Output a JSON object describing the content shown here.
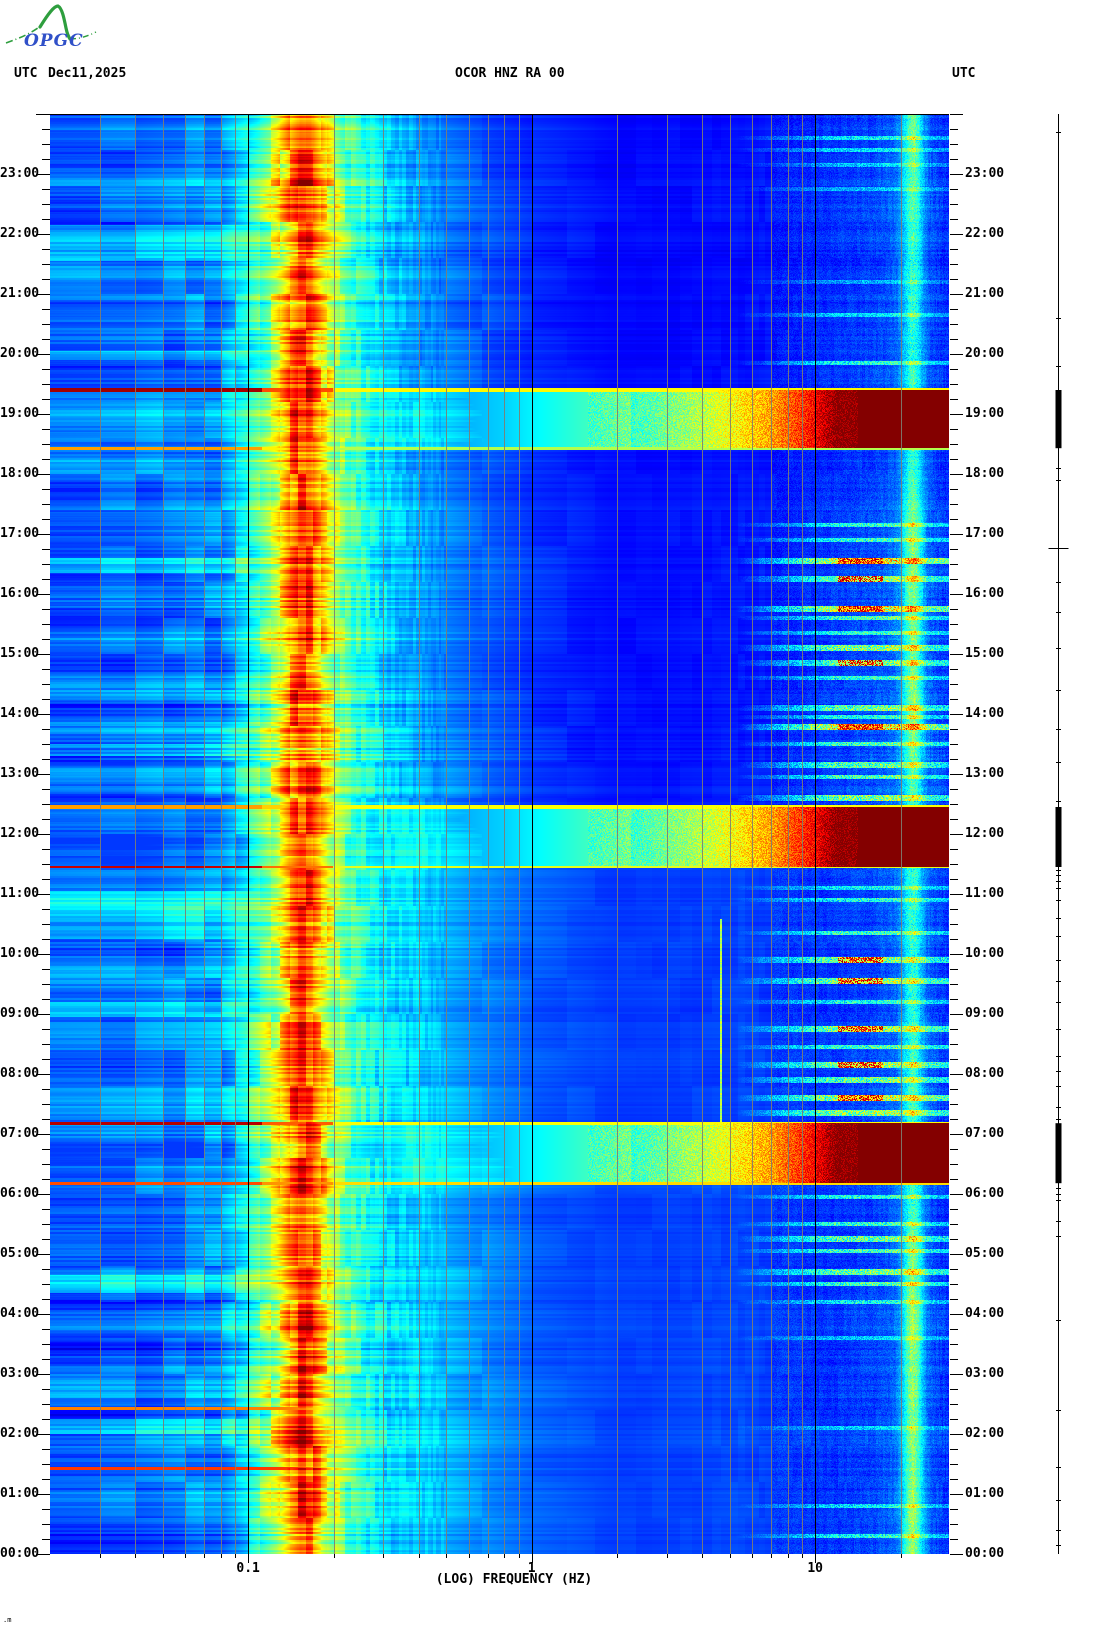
{
  "header": {
    "utc_label_left": "UTC",
    "date": "Dec11,2025",
    "station_title": "OCOR HNZ RA 00",
    "utc_label_right": "UTC"
  },
  "logo": {
    "text": "OPGC",
    "curve_color": "#2e9e3e",
    "text_color": "#3050c8"
  },
  "corner_mark": ".m",
  "x_axis": {
    "title": "(LOG) FREQUENCY (HZ)",
    "tick_labels": [
      {
        "label": "0.1",
        "freq": 0.1
      },
      {
        "label": "1",
        "freq": 1
      },
      {
        "label": "10",
        "freq": 10
      }
    ]
  },
  "y_axis": {
    "labels": [
      {
        "t": 23,
        "label": "23:00"
      },
      {
        "t": 22,
        "label": "22:00"
      },
      {
        "t": 21,
        "label": "21:00"
      },
      {
        "t": 20,
        "label": "20:00"
      },
      {
        "t": 19,
        "label": "19:00"
      },
      {
        "t": 18,
        "label": "18:00"
      },
      {
        "t": 17,
        "label": "17:00"
      },
      {
        "t": 16,
        "label": "16:00"
      },
      {
        "t": 15,
        "label": "15:00"
      },
      {
        "t": 14,
        "label": "14:00"
      },
      {
        "t": 13,
        "label": "13:00"
      },
      {
        "t": 12,
        "label": "12:00"
      },
      {
        "t": 11,
        "label": "11:00"
      },
      {
        "t": 10,
        "label": "10:00"
      },
      {
        "t": 9,
        "label": "09:00"
      },
      {
        "t": 8,
        "label": "08:00"
      },
      {
        "t": 7,
        "label": "07:00"
      },
      {
        "t": 6,
        "label": "06:00"
      },
      {
        "t": 5,
        "label": "05:00"
      },
      {
        "t": 4,
        "label": "04:00"
      },
      {
        "t": 3,
        "label": "03:00"
      },
      {
        "t": 2,
        "label": "02:00"
      },
      {
        "t": 1,
        "label": "01:00"
      },
      {
        "t": 0,
        "label": "00:00"
      }
    ]
  },
  "chart_data": {
    "type": "heatmap",
    "subtype": "seismic-spectrogram",
    "title": "OCOR HNZ RA 00",
    "date_utc": "Dec11,2025",
    "x_range_hz": [
      0.02,
      29.65
    ],
    "x_scale": "log10",
    "y_range_hours": [
      0,
      24
    ],
    "y_direction": "up",
    "colormap": "jet",
    "colormap_anchors": [
      [
        0.0,
        [
          0,
          0,
          135
        ]
      ],
      [
        0.125,
        [
          0,
          0,
          255
        ]
      ],
      [
        0.375,
        [
          0,
          255,
          255
        ]
      ],
      [
        0.625,
        [
          255,
          255,
          0
        ]
      ],
      [
        0.875,
        [
          255,
          0,
          0
        ]
      ],
      [
        1.0,
        [
          132,
          0,
          0
        ]
      ]
    ],
    "base_profile": [
      [
        -1.7,
        0.22
      ],
      [
        -1.4,
        0.23
      ],
      [
        -1.1,
        0.27
      ],
      [
        -1.02,
        0.36
      ],
      [
        -0.97,
        0.44
      ],
      [
        -0.9,
        0.58
      ],
      [
        -0.855,
        0.74
      ],
      [
        -0.815,
        0.84
      ],
      [
        -0.78,
        0.82
      ],
      [
        -0.745,
        0.7
      ],
      [
        -0.7,
        0.56
      ],
      [
        -0.65,
        0.47
      ],
      [
        -0.58,
        0.4
      ],
      [
        -0.5,
        0.33
      ],
      [
        -0.38,
        0.28
      ],
      [
        -0.2,
        0.22
      ],
      [
        0.0,
        0.17
      ],
      [
        0.3,
        0.135
      ],
      [
        0.6,
        0.14
      ],
      [
        0.9,
        0.15
      ],
      [
        1.1,
        0.16
      ],
      [
        1.2,
        0.17
      ],
      [
        1.28,
        0.2
      ],
      [
        1.345,
        0.27
      ],
      [
        1.4,
        0.19
      ],
      [
        1.47,
        0.15
      ]
    ],
    "noise_amp_profile": [
      [
        -1.7,
        0.06
      ],
      [
        -1.3,
        0.07
      ],
      [
        -1.05,
        0.09
      ],
      [
        -0.95,
        0.12
      ],
      [
        -0.88,
        0.15
      ],
      [
        -0.82,
        0.16
      ],
      [
        -0.76,
        0.15
      ],
      [
        -0.7,
        0.13
      ],
      [
        -0.62,
        0.1
      ],
      [
        -0.5,
        0.08
      ],
      [
        -0.35,
        0.05
      ],
      [
        -0.1,
        0.03
      ],
      [
        0.3,
        0.015
      ],
      [
        0.8,
        0.02
      ],
      [
        1.2,
        0.03
      ],
      [
        1.47,
        0.035
      ]
    ],
    "mid_env": [
      [
        0,
        0.05
      ],
      [
        5.9,
        0.05
      ],
      [
        6.18,
        0.06
      ],
      [
        7.18,
        0.045
      ],
      [
        11.4,
        0.045
      ],
      [
        12.5,
        0.008
      ],
      [
        13.5,
        0.0
      ],
      [
        18.4,
        0.0
      ],
      [
        19.45,
        -0.008
      ],
      [
        24,
        -0.008
      ]
    ],
    "hf_fuzz_env": [
      [
        0,
        0.55
      ],
      [
        2,
        0.5
      ],
      [
        4,
        0.6
      ],
      [
        5.5,
        0.55
      ],
      [
        6.3,
        0.45
      ],
      [
        7.3,
        0.75
      ],
      [
        8.5,
        0.65
      ],
      [
        10,
        0.6
      ],
      [
        11.3,
        0.5
      ],
      [
        12.6,
        0.75
      ],
      [
        13.4,
        0.8
      ],
      [
        14,
        0.8
      ],
      [
        15,
        0.78
      ],
      [
        16,
        0.85
      ],
      [
        17,
        0.75
      ],
      [
        17.8,
        0.55
      ],
      [
        18.4,
        0.4
      ],
      [
        19.5,
        0.5
      ],
      [
        20.5,
        0.42
      ],
      [
        21.5,
        0.45
      ],
      [
        22.5,
        0.5
      ],
      [
        23.5,
        0.5
      ],
      [
        24,
        0.5
      ]
    ],
    "stripe22": {
      "f_log": 1.345,
      "sigma": 0.035,
      "envelope": [
        [
          0,
          0.95
        ],
        [
          1,
          0.9
        ],
        [
          2,
          0.85
        ],
        [
          3,
          0.9
        ],
        [
          4,
          0.95
        ],
        [
          5,
          0.8
        ],
        [
          6,
          0.55
        ],
        [
          6.5,
          0.5
        ],
        [
          7.5,
          0.6
        ],
        [
          8.5,
          0.55
        ],
        [
          10,
          0.5
        ],
        [
          11,
          0.55
        ],
        [
          12,
          0.5
        ],
        [
          13,
          0.6
        ],
        [
          14,
          0.9
        ],
        [
          15,
          0.75
        ],
        [
          16,
          0.8
        ],
        [
          17,
          0.85
        ],
        [
          18,
          0.6
        ],
        [
          19,
          0.5
        ],
        [
          19.6,
          0.6
        ],
        [
          20,
          0.5
        ],
        [
          21,
          0.55
        ],
        [
          22,
          0.6
        ],
        [
          23,
          0.7
        ],
        [
          24,
          0.8
        ]
      ]
    },
    "events": [
      {
        "name": "tremor-1826-1924",
        "t_start": 18.43,
        "t_end": 19.4,
        "start_stripe": {
          "lf": 0.72,
          "across": 0.55
        },
        "end_stripe": {
          "lf": 0.97,
          "across": 0.63
        },
        "mid_boost": 0.07
      },
      {
        "name": "tremor-1127-1227",
        "t_start": 11.45,
        "t_end": 12.45,
        "start_stripe": {
          "lf": 0.93,
          "across": 0.6
        },
        "end_stripe": {
          "lf": 0.72,
          "across": 0.62
        },
        "mid_boost": 0.07
      },
      {
        "name": "tremor-0611-0711",
        "t_start": 6.18,
        "t_end": 7.18,
        "start_stripe": {
          "lf": 0.8,
          "across": 0.66
        },
        "end_stripe": {
          "lf": 0.95,
          "across": 0.62
        },
        "mid_boost": 0.07
      }
    ],
    "event_hf_ramp": [
      [
        -0.45,
        0.18
      ],
      [
        -0.1,
        0.26
      ],
      [
        0.3,
        0.4
      ],
      [
        0.6,
        0.55
      ],
      [
        0.85,
        0.72
      ],
      [
        1.0,
        0.88
      ],
      [
        1.08,
        1.0
      ],
      [
        1.5,
        1.0
      ]
    ],
    "lf_stripes": [
      {
        "t": 2.43,
        "v": 0.75
      },
      {
        "t": 1.43,
        "v": 0.82
      }
    ],
    "lf_bright_bands": [
      [
        21.55,
        22.15
      ],
      [
        19.9,
        20.05
      ],
      [
        16.35,
        16.6
      ],
      [
        10.25,
        11.05
      ],
      [
        8.95,
        9.2
      ],
      [
        4.35,
        4.65
      ],
      [
        2.0,
        2.25
      ],
      [
        13.3,
        13.5
      ]
    ],
    "cyan_line": {
      "f_log": 0.667,
      "t_start": 7.18,
      "t_end": 10.58,
      "v": 0.5
    },
    "speckle_streaks": [
      {
        "t": 23.6,
        "amp": 0.25,
        "red": false
      },
      {
        "t": 23.4,
        "amp": 0.22,
        "red": false
      },
      {
        "t": 23.15,
        "amp": 0.2,
        "red": false
      },
      {
        "t": 22.75,
        "amp": 0.18,
        "red": false
      },
      {
        "t": 21.2,
        "amp": 0.18,
        "red": false
      },
      {
        "t": 20.65,
        "amp": 0.22,
        "red": false
      },
      {
        "t": 19.85,
        "amp": 0.3,
        "red": false
      },
      {
        "t": 17.15,
        "amp": 0.3,
        "red": false
      },
      {
        "t": 16.9,
        "amp": 0.3,
        "red": false
      },
      {
        "t": 16.55,
        "amp": 0.55,
        "red": true
      },
      {
        "t": 16.25,
        "amp": 0.4,
        "red": true
      },
      {
        "t": 15.75,
        "amp": 0.55,
        "red": true
      },
      {
        "t": 15.6,
        "amp": 0.35,
        "red": false
      },
      {
        "t": 15.35,
        "amp": 0.3,
        "red": false
      },
      {
        "t": 15.1,
        "amp": 0.45,
        "red": false
      },
      {
        "t": 14.85,
        "amp": 0.4,
        "red": true
      },
      {
        "t": 14.6,
        "amp": 0.3,
        "red": false
      },
      {
        "t": 14.1,
        "amp": 0.4,
        "red": false
      },
      {
        "t": 13.95,
        "amp": 0.3,
        "red": false
      },
      {
        "t": 13.78,
        "amp": 0.6,
        "red": true
      },
      {
        "t": 13.5,
        "amp": 0.35,
        "red": false
      },
      {
        "t": 13.15,
        "amp": 0.4,
        "red": false
      },
      {
        "t": 12.95,
        "amp": 0.35,
        "red": false
      },
      {
        "t": 12.6,
        "amp": 0.45,
        "red": false
      },
      {
        "t": 11.1,
        "amp": 0.25,
        "red": false
      },
      {
        "t": 10.9,
        "amp": 0.3,
        "red": false
      },
      {
        "t": 10.35,
        "amp": 0.35,
        "red": false
      },
      {
        "t": 9.9,
        "amp": 0.45,
        "red": true
      },
      {
        "t": 9.55,
        "amp": 0.45,
        "red": true
      },
      {
        "t": 9.2,
        "amp": 0.3,
        "red": false
      },
      {
        "t": 8.75,
        "amp": 0.45,
        "red": true
      },
      {
        "t": 8.45,
        "amp": 0.35,
        "red": false
      },
      {
        "t": 8.15,
        "amp": 0.45,
        "red": true
      },
      {
        "t": 7.9,
        "amp": 0.4,
        "red": false
      },
      {
        "t": 7.6,
        "amp": 0.5,
        "red": true
      },
      {
        "t": 7.35,
        "amp": 0.45,
        "red": false
      },
      {
        "t": 5.95,
        "amp": 0.3,
        "red": false
      },
      {
        "t": 5.5,
        "amp": 0.35,
        "red": false
      },
      {
        "t": 5.25,
        "amp": 0.4,
        "red": false
      },
      {
        "t": 5.05,
        "amp": 0.35,
        "red": false
      },
      {
        "t": 4.7,
        "amp": 0.4,
        "red": false
      },
      {
        "t": 4.5,
        "amp": 0.35,
        "red": false
      },
      {
        "t": 4.2,
        "amp": 0.3,
        "red": false
      },
      {
        "t": 3.6,
        "amp": 0.2,
        "red": false
      },
      {
        "t": 2.1,
        "amp": 0.2,
        "red": false
      },
      {
        "t": 0.8,
        "amp": 0.25,
        "red": false
      },
      {
        "t": 0.3,
        "amp": 0.3,
        "red": false
      }
    ],
    "gridlines": {
      "minor": [
        0.03,
        0.04,
        0.05,
        0.06,
        0.07,
        0.08,
        0.09,
        0.2,
        0.3,
        0.4,
        0.5,
        0.6,
        0.7,
        0.8,
        0.9,
        2,
        3,
        4,
        5,
        6,
        7,
        8,
        9,
        20
      ],
      "major": [
        0.1,
        1,
        10
      ],
      "minor_color": "#7d7d72",
      "major_color": "#000000"
    }
  },
  "event_bar": {
    "plus_t": 16.77,
    "ticks_t": [
      23.7,
      20.6,
      19.8,
      18.1,
      17.9,
      16.2,
      15.7,
      15.1,
      14.4,
      13.75,
      13.2,
      12.55,
      11.4,
      11.32,
      11.22,
      11.1,
      10.9,
      10.6,
      10.3,
      9.9,
      9.55,
      9.2,
      8.75,
      8.3,
      8.05,
      7.8,
      7.45,
      7.25,
      6.1,
      6.0,
      5.9,
      5.55,
      5.3,
      3.9,
      2.4,
      1.45,
      0.9,
      0.4,
      0.15
    ]
  }
}
